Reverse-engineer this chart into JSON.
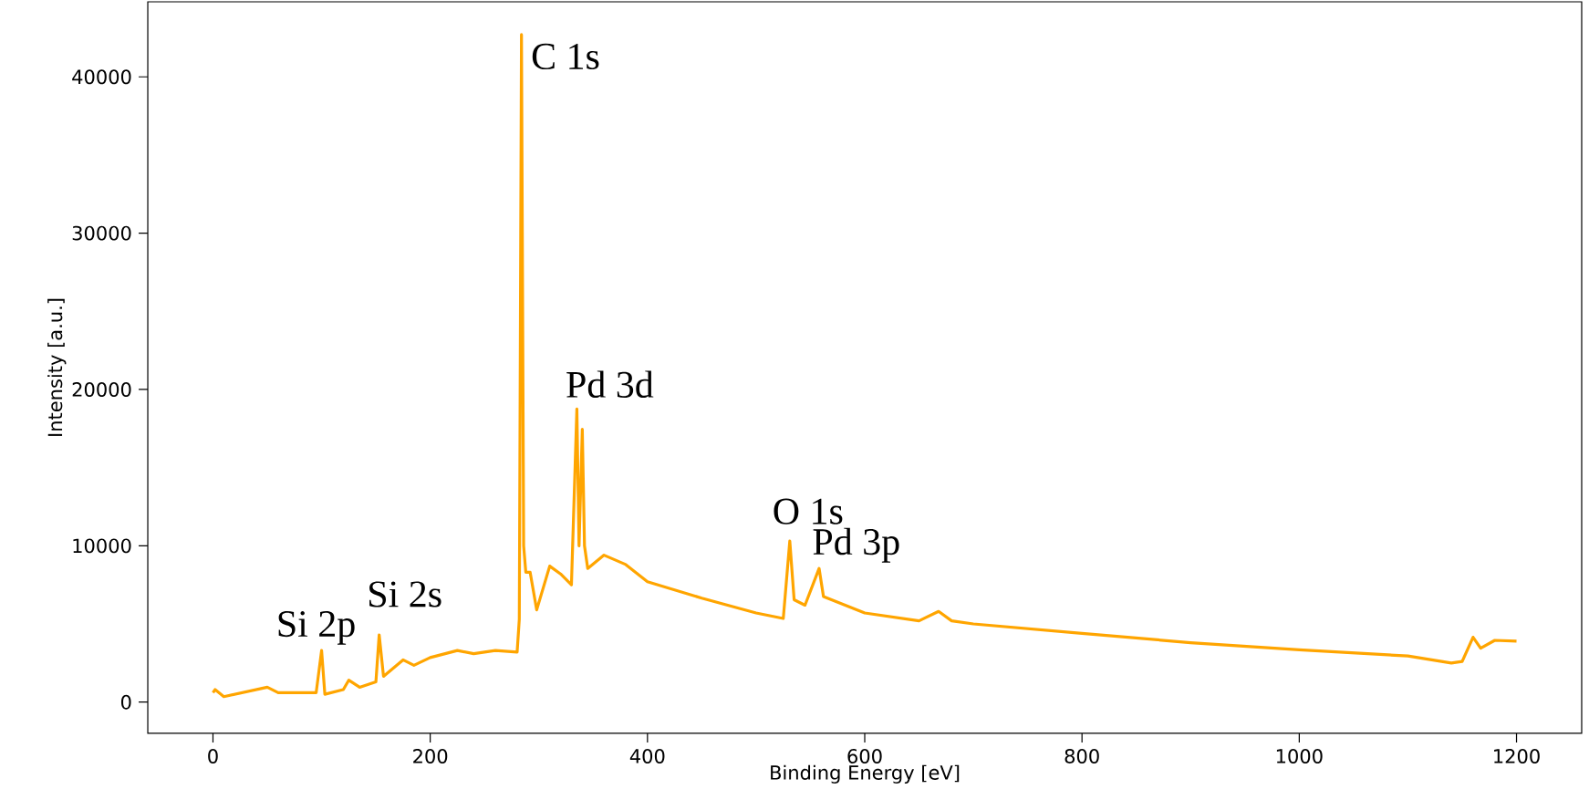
{
  "chart_data": {
    "type": "line",
    "xlabel": "Binding Energy [eV]",
    "ylabel": "Intensity [a.u.]",
    "xlim": [
      -60,
      1260
    ],
    "ylim": [
      -2000,
      44800
    ],
    "xticks": [
      0,
      200,
      400,
      600,
      800,
      1000,
      1200
    ],
    "yticks": [
      0,
      10000,
      20000,
      30000,
      40000
    ],
    "series": [
      {
        "color": "#ffa500",
        "x": [
          0,
          2,
          10,
          50,
          60,
          95,
          100,
          103,
          120,
          125,
          135,
          150,
          153,
          157,
          175,
          185,
          200,
          225,
          240,
          260,
          280,
          282,
          284,
          286,
          288,
          292,
          298,
          310,
          320,
          330,
          335,
          337,
          340,
          342,
          345,
          360,
          380,
          400,
          450,
          500,
          525,
          531,
          535,
          545,
          558,
          562,
          600,
          650,
          668,
          680,
          700,
          800,
          900,
          1000,
          1100,
          1140,
          1150,
          1160,
          1167,
          1180,
          1200
        ],
        "values": [
          600,
          800,
          350,
          950,
          600,
          600,
          3300,
          500,
          800,
          1400,
          950,
          1300,
          4300,
          1650,
          2700,
          2350,
          2850,
          3300,
          3100,
          3300,
          3200,
          5300,
          42700,
          10000,
          8300,
          8300,
          5900,
          8700,
          8200,
          7500,
          18750,
          10000,
          17450,
          10000,
          8550,
          9400,
          8800,
          7700,
          6650,
          5700,
          5350,
          10300,
          6550,
          6200,
          8550,
          6750,
          5700,
          5200,
          5800,
          5200,
          5000,
          4400,
          3800,
          3350,
          2950,
          2500,
          2600,
          4150,
          3450,
          3950,
          3900
        ]
      }
    ],
    "annotations": [
      {
        "text": "Si 2p",
        "x": 100,
        "y": 3300
      },
      {
        "text": "Si 2s",
        "x": 153,
        "y": 4300
      },
      {
        "text": "C 1s",
        "x": 284,
        "y": 42700
      },
      {
        "text": "Pd 3d",
        "x": 335,
        "y": 18750
      },
      {
        "text": "O 1s",
        "x": 531,
        "y": 10300
      },
      {
        "text": "Pd 3p",
        "x": 558,
        "y": 8550
      }
    ]
  }
}
